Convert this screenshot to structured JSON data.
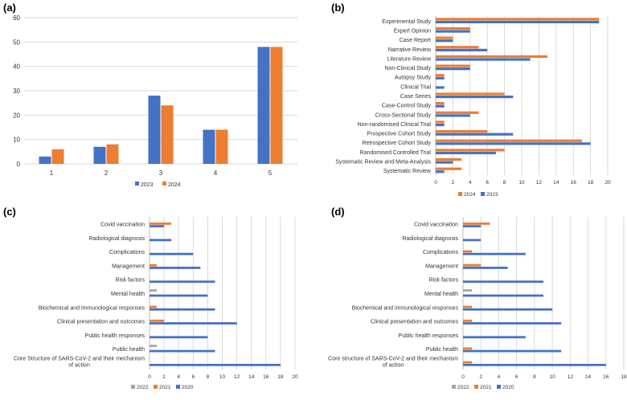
{
  "colors": {
    "blue": "#4472C4",
    "orange": "#ED7D31",
    "gray": "#A5A5A5",
    "grid": "#D9D9D9",
    "axis": "#BFBFBF"
  },
  "chart_data": [
    {
      "panel": "(a)",
      "type": "bar",
      "title": "",
      "xlabel": "",
      "ylabel": "",
      "categories": [
        "1",
        "2",
        "3",
        "4",
        "5"
      ],
      "series": [
        {
          "name": "2023",
          "color": "#4472C4",
          "values": [
            3,
            7,
            28,
            14,
            48
          ]
        },
        {
          "name": "2024",
          "color": "#ED7D31",
          "values": [
            6,
            8,
            24,
            14,
            48
          ]
        }
      ],
      "ylim": [
        0,
        60
      ],
      "yticks": [
        "0",
        "10",
        "20",
        "30",
        "40",
        "50",
        "60"
      ],
      "grid": true,
      "legend": "bottom"
    },
    {
      "panel": "(b)",
      "type": "bar",
      "orientation": "horizontal",
      "categories": [
        "Experimental Study",
        "Expert Opinion",
        "Case Report",
        "Narrative Review",
        "Literature Review",
        "Non-Clinical Study",
        "Autopsy Study",
        "Clinical Trial",
        "Case Series",
        "Case-Control Study",
        "Cross-Sectional Study",
        "Non-randomised Clinical Trial",
        "Prospective Cohort Study",
        "Retrospective Cohort Study",
        "Randomised Controlled Trial",
        "Systematic Review and Meta-Analysis",
        "Systematic Review"
      ],
      "series": [
        {
          "name": "2024",
          "color": "#ED7D31",
          "values": [
            19,
            4,
            2,
            5,
            13,
            4,
            1,
            0,
            8,
            1,
            5,
            1,
            6,
            17,
            8,
            3,
            3
          ]
        },
        {
          "name": "2023",
          "color": "#4472C4",
          "values": [
            19,
            4,
            2,
            6,
            11,
            4,
            1,
            1,
            9,
            1,
            4,
            1,
            9,
            18,
            7,
            2,
            1
          ]
        }
      ],
      "xlim": [
        0,
        20
      ],
      "xticks": [
        "0",
        "2",
        "4",
        "6",
        "8",
        "10",
        "12",
        "14",
        "16",
        "18",
        "20"
      ],
      "grid": true,
      "legend": "bottom"
    },
    {
      "panel": "(c)",
      "type": "bar",
      "orientation": "horizontal",
      "categories": [
        "Covid vaccination",
        "Radiological diagnosis",
        "Complications",
        "Management",
        "Risk factors",
        "Mental health",
        "Biochemical and immunological responses",
        "Clinical presentation and outcomes",
        "Public health responses",
        "Public health",
        "Core Structure of SARS-CoV-2 and their mechanism of action"
      ],
      "series": [
        {
          "name": "2022",
          "color": "#A5A5A5",
          "values": [
            0,
            0,
            0,
            0,
            0,
            1,
            0,
            0,
            0,
            1,
            0
          ]
        },
        {
          "name": "2021",
          "color": "#ED7D31",
          "values": [
            3,
            0,
            0,
            1,
            0,
            0,
            1,
            2,
            0,
            0,
            0
          ]
        },
        {
          "name": "2020",
          "color": "#4472C4",
          "values": [
            2,
            3,
            6,
            7,
            9,
            8,
            9,
            12,
            8,
            9,
            18
          ]
        }
      ],
      "xlim": [
        0,
        20
      ],
      "xticks": [
        "0",
        "2",
        "4",
        "6",
        "8",
        "10",
        "12",
        "14",
        "16",
        "18",
        "20"
      ],
      "grid": true,
      "legend": "bottom"
    },
    {
      "panel": "(d)",
      "type": "bar",
      "orientation": "horizontal",
      "categories": [
        "Covid vaccination",
        "Radiological diagnosis",
        "Complications",
        "Management",
        "Risk factors",
        "Mental health",
        "Biochemical and immunological responses",
        "Clinical presentation and outcomes",
        "Public health responses",
        "Public health",
        "Core structure of SARS-CoV-2 and their mechanism of action"
      ],
      "series": [
        {
          "name": "2022",
          "color": "#A5A5A5",
          "values": [
            0,
            0,
            0,
            0,
            0,
            1,
            0,
            0,
            0,
            0,
            0
          ]
        },
        {
          "name": "2021",
          "color": "#ED7D31",
          "values": [
            3,
            0,
            1,
            2,
            0,
            0,
            1,
            1,
            0,
            1,
            1
          ]
        },
        {
          "name": "2020",
          "color": "#4472C4",
          "values": [
            2,
            2,
            7,
            5,
            9,
            9,
            10,
            11,
            7,
            11,
            16
          ]
        }
      ],
      "xlim": [
        0,
        18
      ],
      "xticks": [
        "0",
        "2",
        "4",
        "6",
        "8",
        "10",
        "12",
        "14",
        "16",
        "18"
      ],
      "grid": true,
      "legend": "bottom"
    }
  ]
}
